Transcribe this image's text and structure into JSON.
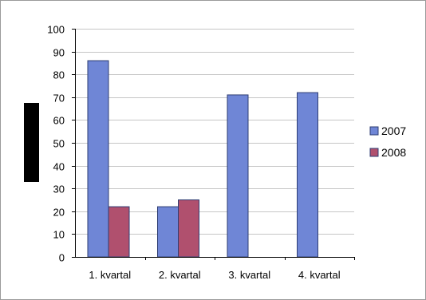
{
  "chart_data": {
    "type": "bar",
    "categories": [
      "1. kvartal",
      "2. kvartal",
      "3. kvartal",
      "4. kvartal"
    ],
    "series": [
      {
        "name": "2007",
        "values": [
          86,
          22,
          71,
          72
        ],
        "color": "#6f86d6"
      },
      {
        "name": "2008",
        "values": [
          22,
          25,
          null,
          null
        ],
        "color": "#b0506e"
      }
    ],
    "title": "",
    "xlabel": "",
    "ylabel": "",
    "ylim": [
      0,
      100
    ],
    "yticks": [
      "0",
      "10",
      "20",
      "30",
      "40",
      "50",
      "60",
      "70",
      "80",
      "90",
      "100"
    ],
    "grid": true,
    "legend_position": "right",
    "colors": {
      "grid": "#c6c6c6",
      "axis": "#000000",
      "bar_border": "#2e3d73",
      "ylabel_box": "#000000"
    }
  }
}
